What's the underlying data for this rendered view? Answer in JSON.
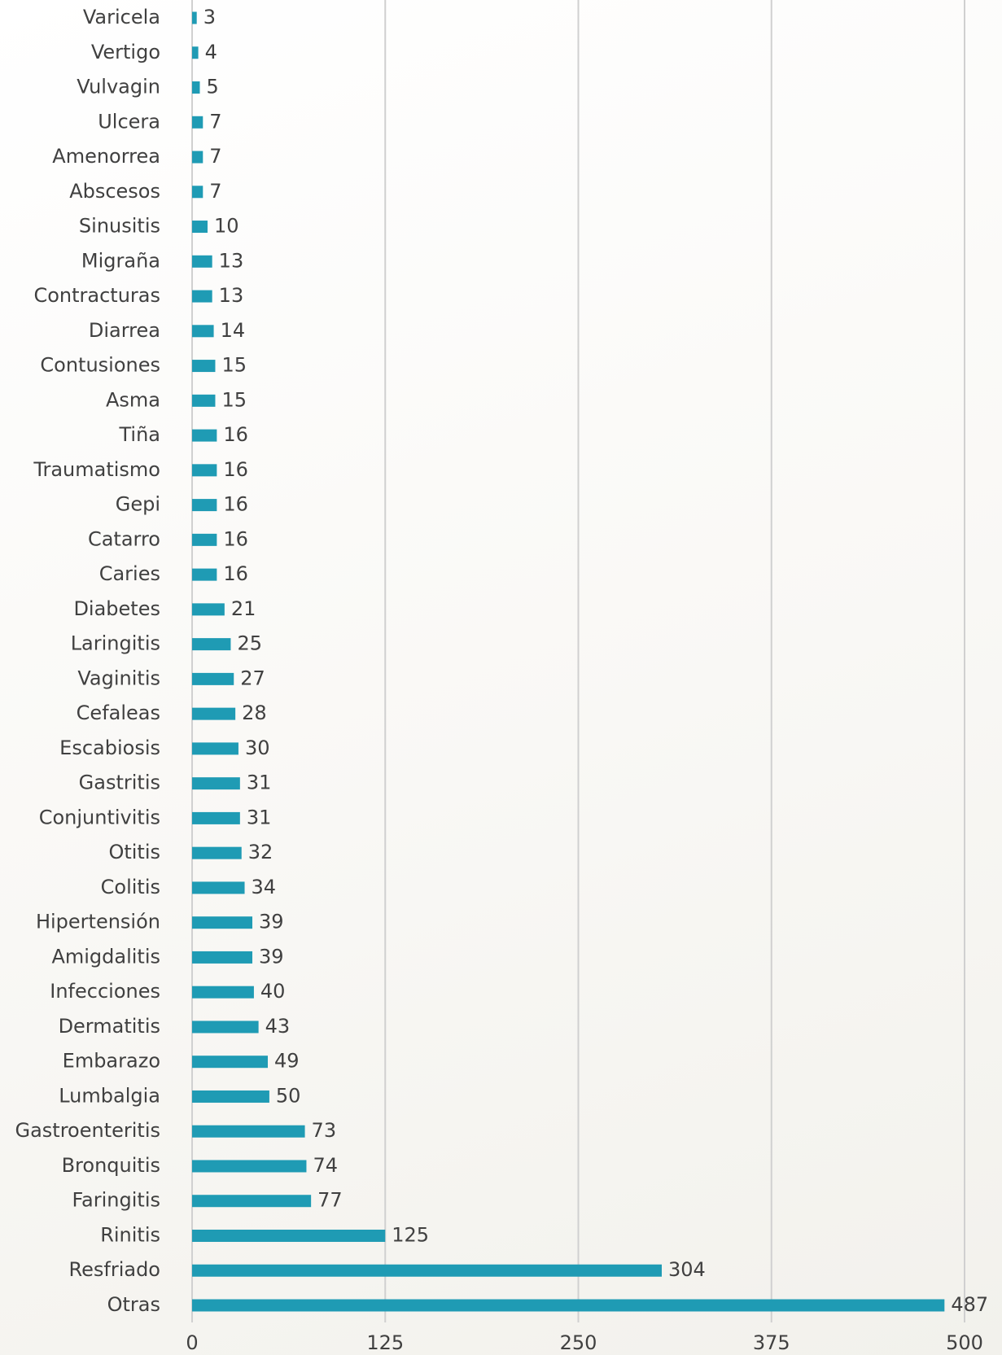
{
  "chart_data": {
    "type": "bar",
    "orientation": "horizontal",
    "categories": [
      "Varicela",
      "Vertigo",
      "Vulvagin",
      "Ulcera",
      "Amenorrea",
      "Abscesos",
      "Sinusitis",
      "Migraña",
      "Contracturas",
      "Diarrea",
      "Contusiones",
      "Asma",
      "Tiña",
      "Traumatismo",
      "Gepi",
      "Catarro",
      "Caries",
      "Diabetes",
      "Laringitis",
      "Vaginitis",
      "Cefaleas",
      "Escabiosis",
      "Gastritis",
      "Conjuntivitis",
      "Otitis",
      "Colitis",
      "Hipertensión",
      "Amigdalitis",
      "Infecciones",
      "Dermatitis",
      "Embarazo",
      "Lumbalgia",
      "Gastroenteritis",
      "Bronquitis",
      "Faringitis",
      "Rinitis",
      "Resfriado",
      "Otras"
    ],
    "values": [
      3,
      4,
      5,
      7,
      7,
      7,
      10,
      13,
      13,
      14,
      15,
      15,
      16,
      16,
      16,
      16,
      16,
      21,
      25,
      27,
      28,
      30,
      31,
      31,
      32,
      34,
      39,
      39,
      40,
      43,
      49,
      50,
      73,
      74,
      77,
      125,
      304,
      487
    ],
    "color": "#1f9bb4",
    "xlim": [
      0,
      500
    ],
    "xticks": [
      0,
      125,
      250,
      375,
      500
    ],
    "grid": true,
    "data_labels": true
  }
}
